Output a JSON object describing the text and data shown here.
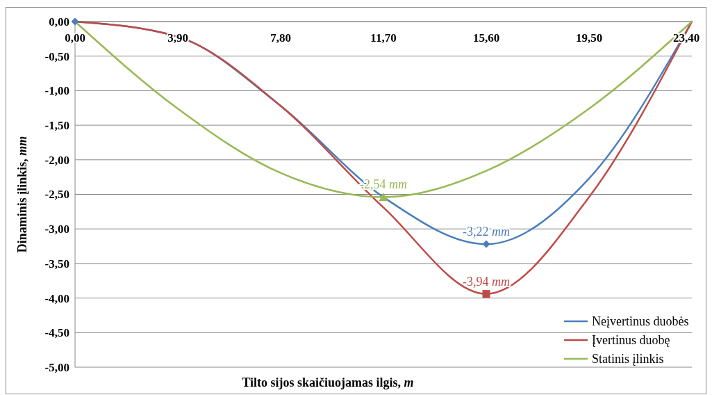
{
  "chart_data": {
    "type": "line",
    "ylabel": "Dinaminis įlinkis, mm",
    "xlabel": "Tilto sijos skaičiuojamas ilgis, m",
    "x": [
      0,
      3.9,
      7.8,
      11.7,
      15.6,
      19.5,
      23.4
    ],
    "xlim": [
      0,
      23.4
    ],
    "xticks": [
      {
        "value": 0,
        "label": "0,00"
      },
      {
        "value": 3.9,
        "label": "3,90"
      },
      {
        "value": 7.8,
        "label": "7,80"
      },
      {
        "value": 11.7,
        "label": "11,70"
      },
      {
        "value": 15.6,
        "label": "15,60"
      },
      {
        "value": 19.5,
        "label": "19,50"
      },
      {
        "value": 23.4,
        "label": "23,40"
      }
    ],
    "ylim": [
      -5,
      0
    ],
    "yticks": [
      {
        "value": 0,
        "label": "0,00"
      },
      {
        "value": -0.5,
        "label": "-0,50"
      },
      {
        "value": -1,
        "label": "-1,00"
      },
      {
        "value": -1.5,
        "label": "-1,50"
      },
      {
        "value": -2,
        "label": "-2,00"
      },
      {
        "value": -2.5,
        "label": "-2,50"
      },
      {
        "value": -3,
        "label": "-3,00"
      },
      {
        "value": -3.5,
        "label": "-3,50"
      },
      {
        "value": -4,
        "label": "-4,00"
      },
      {
        "value": -4.5,
        "label": "-4,50"
      },
      {
        "value": -5,
        "label": "-5,00"
      }
    ],
    "grid": "y",
    "legend": "bottom right",
    "marker": "none",
    "line_style": "solid",
    "series": [
      {
        "name": "Neįvertinus duobės",
        "color": "#4a7ebb",
        "values": [
          0,
          -0.22,
          -1.22,
          -2.54,
          -3.22,
          -2.27,
          0
        ]
      },
      {
        "name": "Įvertinus duobę",
        "color": "#be4b48",
        "values": [
          0,
          -0.22,
          -1.22,
          -2.69,
          -3.94,
          -2.54,
          0
        ]
      },
      {
        "name": "Statinis įlinkis",
        "color": "#98b954",
        "values": [
          0,
          -1.26,
          -2.19,
          -2.54,
          -2.16,
          -1.26,
          0
        ]
      },
      {
        "type": "scatter",
        "color": "#4a7ebb",
        "marker": "diamond",
        "x": [
          0,
          15.6
        ],
        "values": [
          0,
          -3.22
        ],
        "value_labels": [
          null,
          "-3,22 mm"
        ]
      },
      {
        "type": "scatter",
        "color": "#be4b48",
        "marker": "square",
        "x": [
          15.6
        ],
        "values": [
          -3.94
        ],
        "value_labels": [
          "-3,94 mm"
        ]
      },
      {
        "type": "scatter",
        "color": "#98b954",
        "marker": "triangle",
        "x": [
          11.7
        ],
        "values": [
          -2.54
        ],
        "value_labels": [
          "-2,54 mm"
        ]
      }
    ]
  }
}
